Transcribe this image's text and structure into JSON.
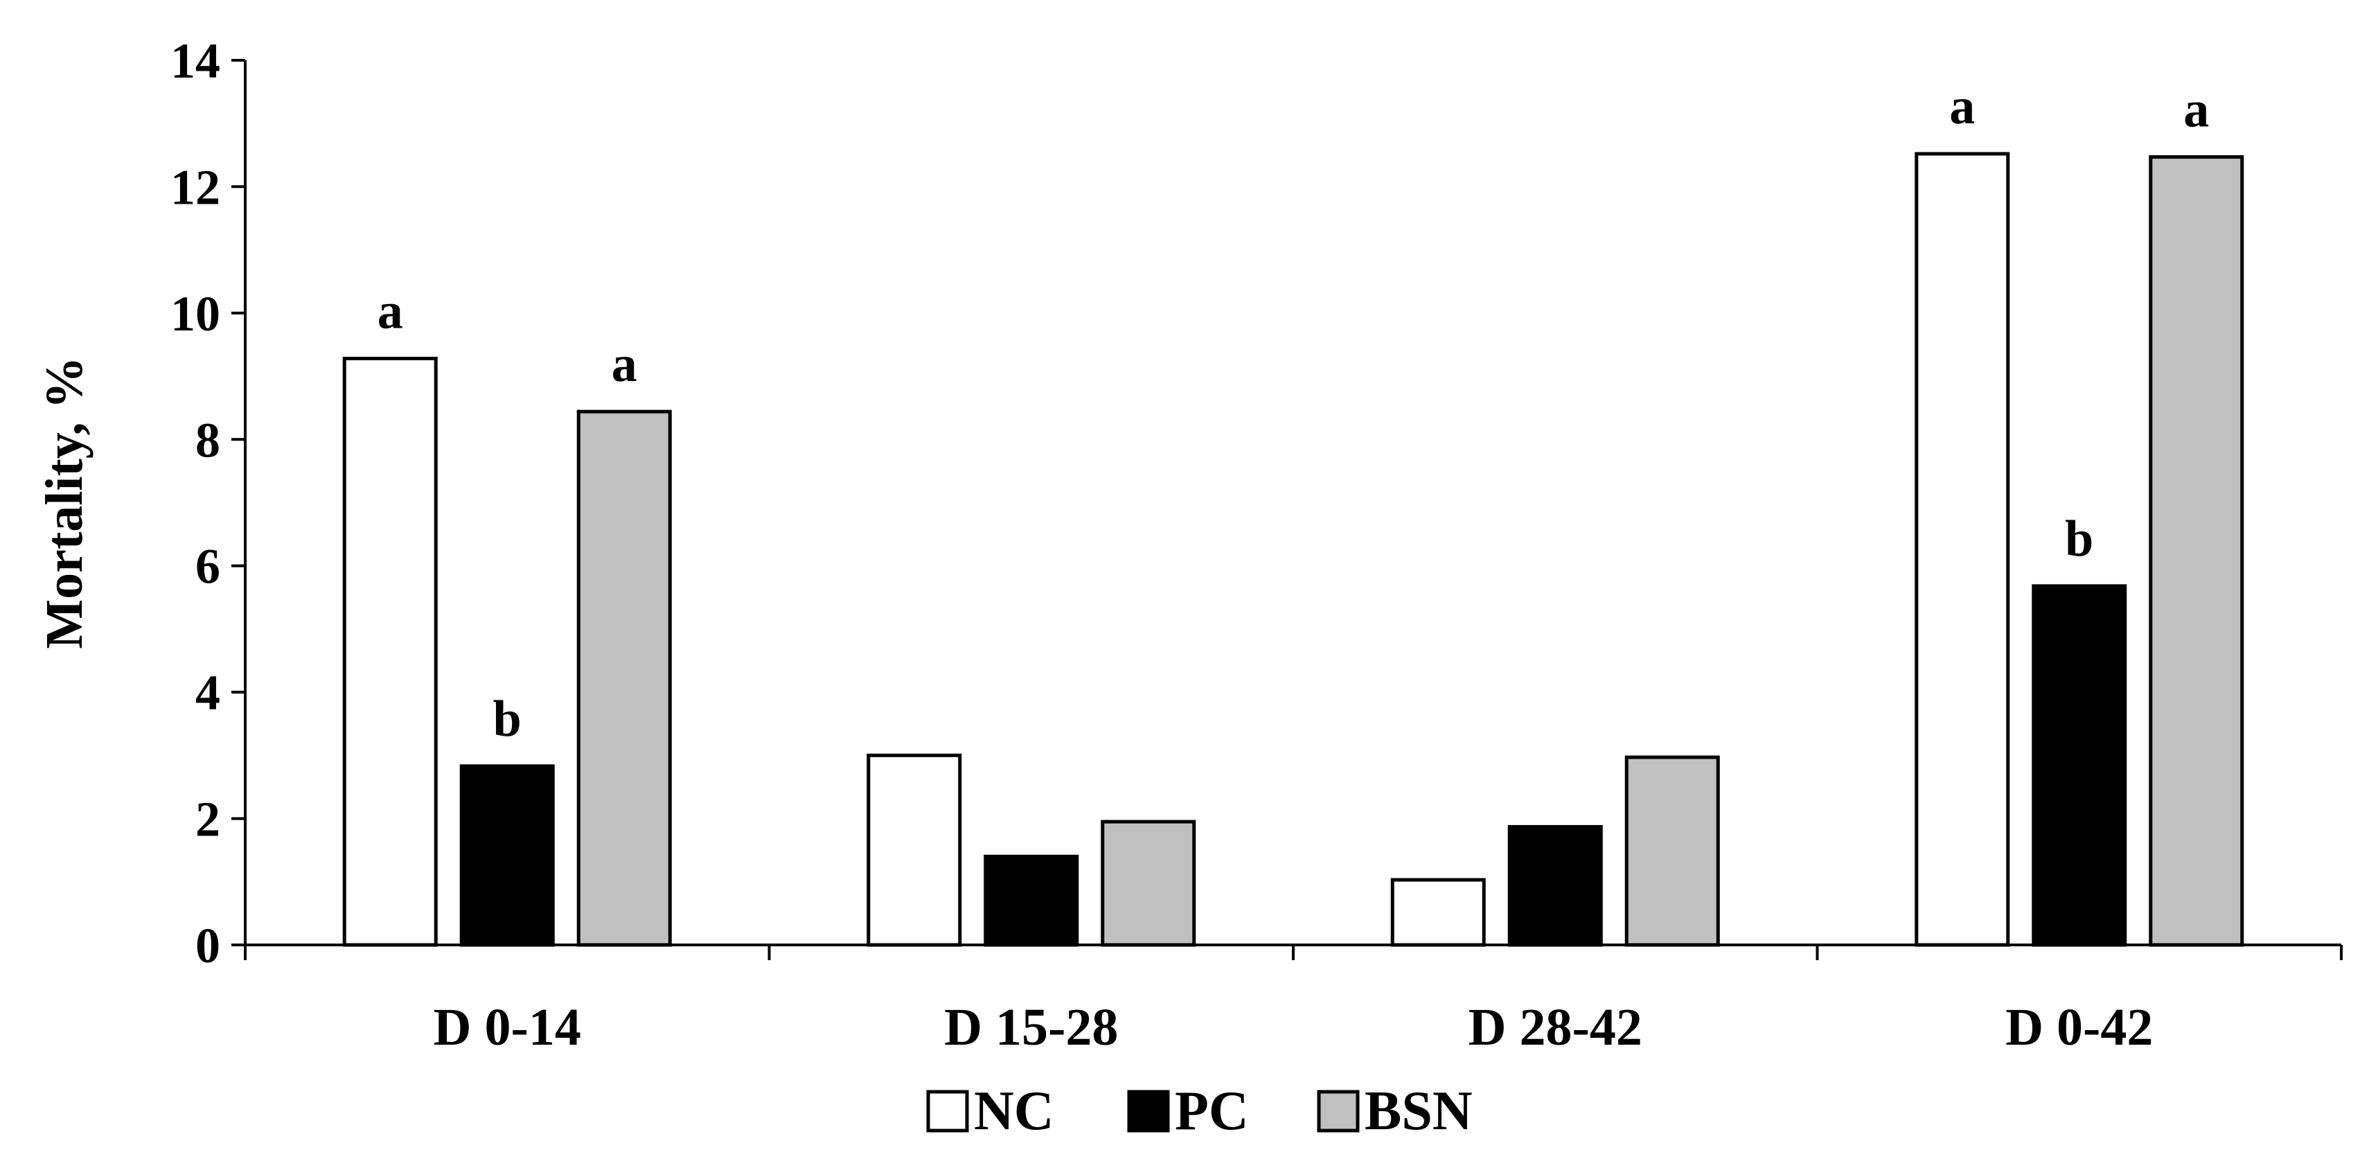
{
  "chart_data": {
    "type": "bar",
    "title": "",
    "xlabel": "",
    "ylabel": "Mortality, %",
    "ylim": [
      0,
      14
    ],
    "yticks": [
      0,
      2,
      4,
      6,
      8,
      10,
      12,
      14
    ],
    "ytick_labels": [
      "0",
      "2",
      "4",
      "6",
      "8",
      "10",
      "12",
      "14"
    ],
    "categories": [
      "D 0-14",
      "D 15-28",
      "D 28-42",
      "D 0-42"
    ],
    "legend_position": "bottom",
    "grid": false,
    "series": [
      {
        "name": "NC",
        "color": "#ffffff",
        "values": [
          9.28,
          3.0,
          1.03,
          12.52
        ],
        "labels": [
          "a",
          "",
          "",
          "a"
        ]
      },
      {
        "name": "PC",
        "color": "#000000",
        "values": [
          2.83,
          1.4,
          1.87,
          5.68
        ],
        "labels": [
          "b",
          "",
          "",
          "b"
        ]
      },
      {
        "name": "BSN",
        "color": "#c0c0c0",
        "values": [
          8.44,
          1.95,
          2.97,
          12.47
        ],
        "labels": [
          "a",
          "",
          "",
          "a"
        ]
      }
    ]
  }
}
